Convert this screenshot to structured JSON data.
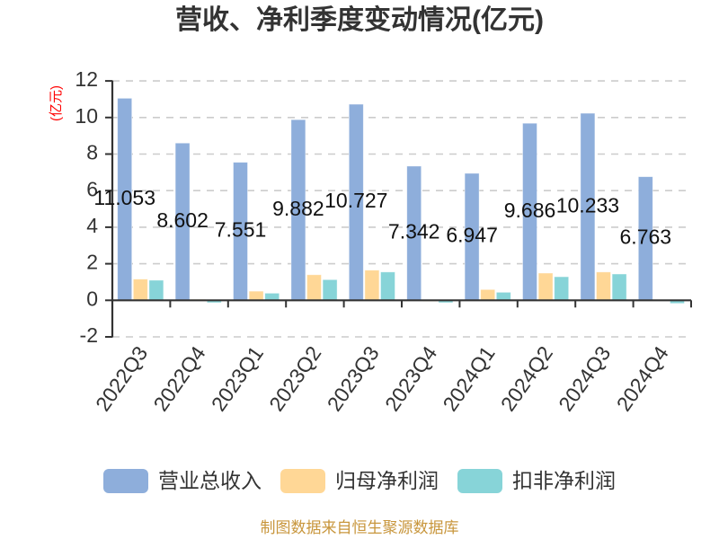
{
  "title": "营收、净利季度变动情况(亿元)",
  "chart_data": {
    "type": "bar",
    "title": "营收、净利季度变动情况(亿元)",
    "xlabel": "",
    "ylabel": "(亿元)",
    "ylabel_color": "#ff0000",
    "ylim": [
      -2,
      12
    ],
    "yticks": [
      -2,
      0,
      2,
      4,
      6,
      8,
      10,
      12
    ],
    "grid": true,
    "legend_position": "bottom",
    "x_label_rotation": -55,
    "categories": [
      "2022Q3",
      "2022Q4",
      "2023Q1",
      "2023Q2",
      "2023Q3",
      "2023Q4",
      "2024Q1",
      "2024Q2",
      "2024Q3",
      "2024Q4"
    ],
    "series": [
      {
        "name": "营业总收入",
        "color": "#8eaedb",
        "show_labels": true,
        "values": [
          11.053,
          8.602,
          7.551,
          9.882,
          10.727,
          7.342,
          6.947,
          9.686,
          10.233,
          6.763
        ],
        "labels": [
          "11.053",
          "8.602",
          "7.551",
          "9.882",
          "10.727",
          "7.342",
          "6.947",
          "9.686",
          "10.233",
          "6.763"
        ]
      },
      {
        "name": "归母净利润",
        "color": "#ffd796",
        "show_labels": false,
        "values": [
          1.16,
          0.05,
          0.5,
          1.4,
          1.65,
          -0.05,
          0.59,
          1.49,
          1.55,
          0.02
        ]
      },
      {
        "name": "扣非净利润",
        "color": "#87d4d8",
        "show_labels": false,
        "values": [
          1.1,
          -0.13,
          0.39,
          1.13,
          1.55,
          -0.13,
          0.44,
          1.29,
          1.44,
          -0.17
        ]
      }
    ]
  },
  "legend": {
    "items": [
      {
        "label": "营业总收入",
        "color": "#8eaedb"
      },
      {
        "label": "归母净利润",
        "color": "#ffd796"
      },
      {
        "label": "扣非净利润",
        "color": "#87d4d8"
      }
    ]
  },
  "footer": {
    "source": "制图数据来自恒生聚源数据库",
    "color": "#c8963c"
  }
}
